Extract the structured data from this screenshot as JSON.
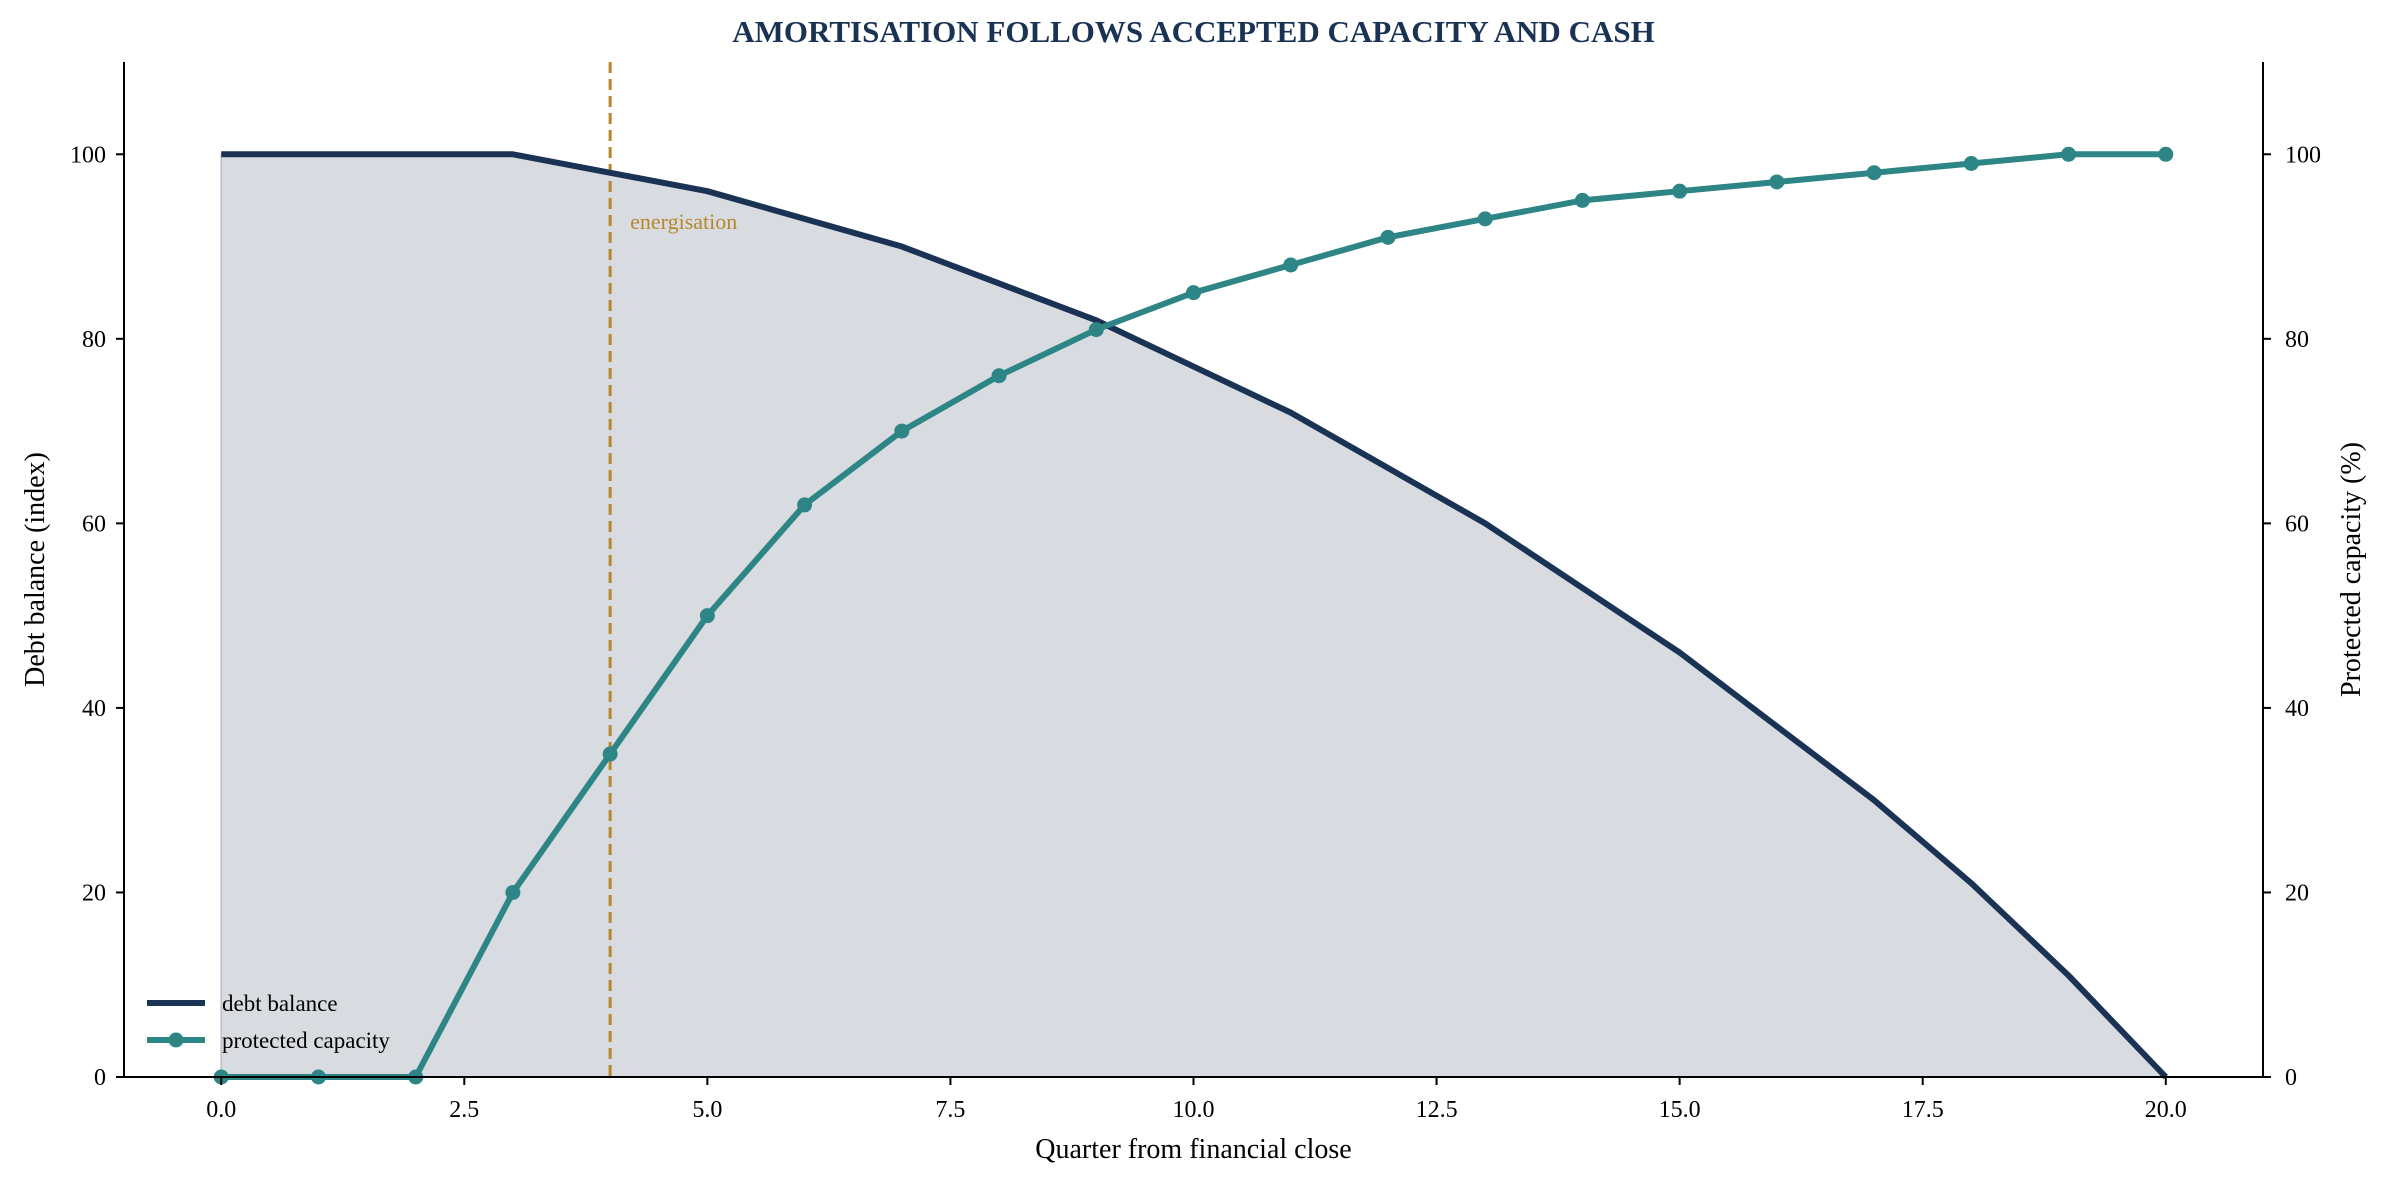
{
  "chart_data": {
    "type": "line",
    "title": "AMORTISATION FOLLOWS ACCEPTED CAPACITY AND CASH",
    "xlabel": "Quarter from financial close",
    "ylabel_left": "Debt balance (index)",
    "ylabel_right": "Protected capacity (%)",
    "xlim": [
      -1,
      21
    ],
    "ylim_left": [
      0,
      110
    ],
    "ylim_right": [
      0,
      110
    ],
    "x_ticks": [
      0.0,
      2.5,
      5.0,
      7.5,
      10.0,
      12.5,
      15.0,
      17.5,
      20.0
    ],
    "x_tick_labels": [
      "0.0",
      "2.5",
      "5.0",
      "7.5",
      "10.0",
      "12.5",
      "15.0",
      "17.5",
      "20.0"
    ],
    "y_ticks_left": [
      0,
      20,
      40,
      60,
      80,
      100
    ],
    "y_tick_labels_left": [
      "0",
      "20",
      "40",
      "60",
      "80",
      "100"
    ],
    "y_ticks_right": [
      0,
      20,
      40,
      60,
      80,
      100
    ],
    "y_tick_labels_right": [
      "0",
      "20",
      "40",
      "60",
      "80",
      "100"
    ],
    "grid": false,
    "legend_position": "lower-left",
    "series": [
      {
        "name": "debt balance",
        "axis": "left",
        "color": "#1a3355",
        "fill_color": "#d8dce1",
        "markers": false,
        "x": [
          0,
          3,
          5,
          7,
          9,
          11,
          13,
          15,
          17,
          18,
          19,
          20
        ],
        "values": [
          100,
          100,
          96,
          90,
          82,
          72,
          60,
          46,
          30,
          21,
          11,
          0
        ]
      },
      {
        "name": "protected capacity",
        "axis": "right",
        "color": "#2e8585",
        "markers": true,
        "x": [
          0,
          1,
          2,
          3,
          4,
          5,
          6,
          7,
          8,
          9,
          10,
          11,
          12,
          13,
          14,
          15,
          16,
          17,
          18,
          19,
          20
        ],
        "values": [
          0,
          0,
          0,
          20,
          35,
          50,
          62,
          70,
          76,
          81,
          85,
          88,
          91,
          93,
          95,
          96,
          97,
          98,
          99,
          100,
          100
        ]
      }
    ],
    "annotations": [
      {
        "type": "vline",
        "x": 4,
        "label": "energisation",
        "color": "#b8862b"
      }
    ]
  }
}
